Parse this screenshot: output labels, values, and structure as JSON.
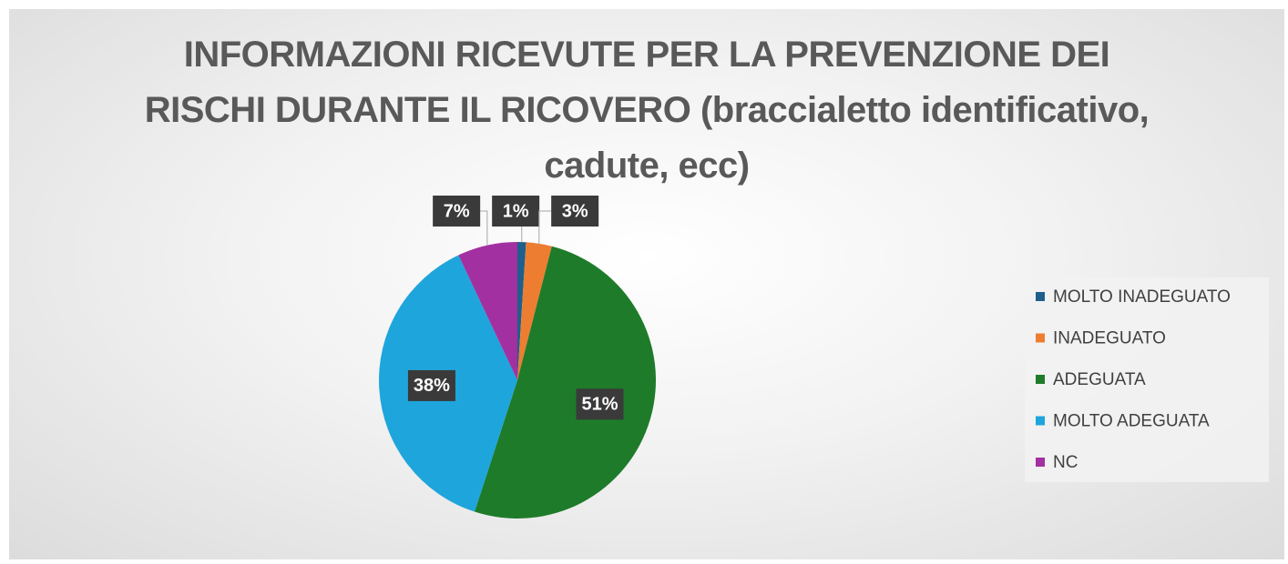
{
  "chart_data": {
    "type": "pie",
    "title": "INFORMAZIONI RICEVUTE PER LA PREVENZIONE DEI RISCHI DURANTE IL RICOVERO (braccialetto identificativo, cadute, ecc)",
    "categories": [
      "MOLTO INADEGUATO",
      "INADEGUATO",
      "ADEGUATA",
      "MOLTO ADEGUATA",
      "NC"
    ],
    "values": [
      1,
      3,
      51,
      38,
      7
    ],
    "value_labels": [
      "1%",
      "3%",
      "51%",
      "38%",
      "7%"
    ],
    "colors": [
      "#1f5f8b",
      "#ed7d31",
      "#1e7b2a",
      "#1ea5dc",
      "#a330a0"
    ],
    "legend": "right"
  }
}
